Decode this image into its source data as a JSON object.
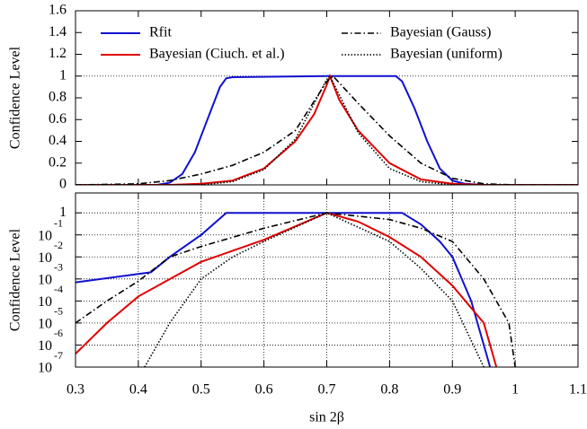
{
  "chart_data": [
    {
      "type": "line",
      "ylabel": "Confidence Level",
      "xlim": [
        0.3,
        1.1
      ],
      "xticks": [
        0.3,
        0.4,
        0.5,
        0.6,
        0.7,
        0.8,
        0.9,
        1,
        1.1
      ],
      "ylim": [
        0,
        1.6
      ],
      "yticks": [
        0,
        0.2,
        0.4,
        0.6,
        0.8,
        1,
        1.2,
        1.4,
        1.6
      ],
      "reference_line": 1,
      "grid": false,
      "log_y": false,
      "series": [
        {
          "name": "Rfit",
          "color": "#1010d0",
          "dash": "solid",
          "x": [
            0.3,
            0.43,
            0.45,
            0.47,
            0.49,
            0.51,
            0.53,
            0.54,
            0.55,
            0.7,
            0.81,
            0.82,
            0.84,
            0.86,
            0.88,
            0.9,
            0.92,
            0.95,
            1.1
          ],
          "values": [
            0,
            0,
            0.02,
            0.1,
            0.3,
            0.6,
            0.9,
            0.98,
            0.99,
            1,
            1,
            0.95,
            0.7,
            0.4,
            0.15,
            0.04,
            0.01,
            0,
            0
          ]
        },
        {
          "name": "Bayesian (Ciuch. et al.)",
          "color": "#e00000",
          "dash": "solid",
          "x": [
            0.3,
            0.45,
            0.5,
            0.55,
            0.6,
            0.65,
            0.68,
            0.7,
            0.705,
            0.72,
            0.75,
            0.8,
            0.85,
            0.9,
            0.95,
            1.1
          ],
          "values": [
            0,
            0,
            0.01,
            0.04,
            0.15,
            0.4,
            0.65,
            0.92,
            1,
            0.78,
            0.5,
            0.2,
            0.05,
            0.01,
            0,
            0
          ]
        },
        {
          "name": "Bayesian (Gauss)",
          "color": "#000000",
          "dash": "dashdot",
          "x": [
            0.3,
            0.4,
            0.45,
            0.5,
            0.55,
            0.6,
            0.65,
            0.7,
            0.71,
            0.75,
            0.8,
            0.85,
            0.9,
            0.95,
            1,
            1.1
          ],
          "values": [
            0,
            0.01,
            0.04,
            0.1,
            0.18,
            0.3,
            0.5,
            0.95,
            1,
            0.75,
            0.45,
            0.2,
            0.06,
            0.01,
            0,
            0
          ]
        },
        {
          "name": "Bayesian (uniform)",
          "color": "#000000",
          "dash": "dotted",
          "x": [
            0.3,
            0.5,
            0.55,
            0.6,
            0.65,
            0.7,
            0.705,
            0.75,
            0.8,
            0.85,
            0.9,
            1.1
          ],
          "values": [
            0,
            0,
            0.03,
            0.14,
            0.42,
            0.97,
            1,
            0.48,
            0.15,
            0.03,
            0,
            0
          ]
        }
      ]
    },
    {
      "type": "line",
      "ylabel": "Confidence Level",
      "xlabel": "sin 2β",
      "xlim": [
        0.3,
        1.1
      ],
      "xticks": [
        0.3,
        0.4,
        0.5,
        0.6,
        0.7,
        0.8,
        0.9,
        1,
        1.1
      ],
      "ylim": [
        1e-07,
        8
      ],
      "yticks": [
        1,
        {
          "value": 0.1,
          "label": "10",
          "exponent": "-1"
        },
        {
          "value": 0.01,
          "label": "10",
          "exponent": "-2"
        },
        {
          "value": 0.001,
          "label": "10",
          "exponent": "-3"
        },
        {
          "value": 0.0001,
          "label": "10",
          "exponent": "-4"
        },
        {
          "value": 1e-05,
          "label": "10",
          "exponent": "-5"
        },
        {
          "value": 1e-06,
          "label": "10",
          "exponent": "-6"
        },
        {
          "value": 1e-07,
          "label": "10",
          "exponent": "-7"
        }
      ],
      "grid": true,
      "log_y": true,
      "series": [
        {
          "color": "#1010d0",
          "dash": "solid",
          "x": [
            0.3,
            0.42,
            0.45,
            0.5,
            0.54,
            0.7,
            0.82,
            0.85,
            0.88,
            0.9,
            0.93,
            0.95,
            0.96
          ],
          "values": [
            0.0007,
            0.002,
            0.01,
            0.1,
            1,
            1,
            1,
            0.3,
            0.05,
            0.01,
            0.0001,
            1e-06,
            1e-07
          ]
        },
        {
          "color": "#e00000",
          "dash": "solid",
          "x": [
            0.3,
            0.35,
            0.4,
            0.5,
            0.6,
            0.7,
            0.75,
            0.8,
            0.85,
            0.9,
            0.95,
            0.97
          ],
          "values": [
            4e-07,
            1e-05,
            0.00016,
            0.006,
            0.06,
            1,
            0.4,
            0.08,
            0.01,
            0.0005,
            1e-05,
            1e-07
          ]
        },
        {
          "color": "#000000",
          "dash": "dashdot",
          "x": [
            0.3,
            0.35,
            0.4,
            0.45,
            0.5,
            0.6,
            0.7,
            0.8,
            0.85,
            0.9,
            0.95,
            0.99,
            1
          ],
          "values": [
            1e-05,
            0.0001,
            0.0008,
            0.01,
            0.03,
            0.2,
            1,
            0.5,
            0.2,
            0.05,
            0.001,
            1e-05,
            1e-07
          ]
        },
        {
          "color": "#000000",
          "dash": "dotted",
          "x": [
            0.41,
            0.45,
            0.5,
            0.55,
            0.6,
            0.7,
            0.8,
            0.85,
            0.9,
            0.95
          ],
          "values": [
            1e-07,
            1e-05,
            0.001,
            0.01,
            0.05,
            1,
            0.05,
            0.003,
            0.0001,
            1e-07
          ]
        }
      ]
    }
  ]
}
